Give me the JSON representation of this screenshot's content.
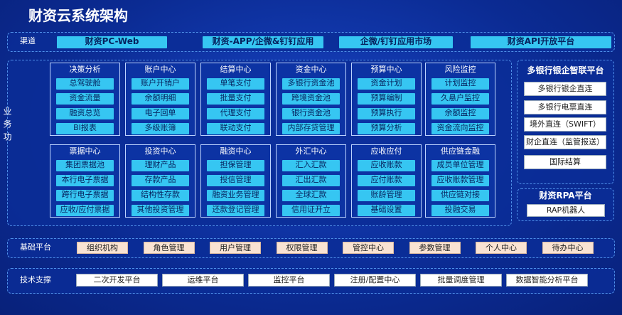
{
  "header": {
    "title": "财资云系统架构"
  },
  "channels": {
    "label": "渠道",
    "items": [
      "财资PC-Web",
      "财资-APP/企微&钉钉应用",
      "企微/钉钉应用市场",
      "财资API开放平台"
    ]
  },
  "business": {
    "label": "业务功能",
    "modules": [
      {
        "title": "决策分析",
        "items": [
          "总驾驶舱",
          "资金流量",
          "融资总览",
          "BI报表"
        ]
      },
      {
        "title": "账户中心",
        "items": [
          "账户开销户",
          "余额明细",
          "电子回单",
          "多级账簿"
        ]
      },
      {
        "title": "结算中心",
        "items": [
          "单笔支付",
          "批量支付",
          "代理支付",
          "联动支付"
        ]
      },
      {
        "title": "资金中心",
        "items": [
          "多银行资金池",
          "跨境资金池",
          "银行资金池",
          "内部存贷管理"
        ]
      },
      {
        "title": "预算中心",
        "items": [
          "资金计划",
          "预算编制",
          "预算执行",
          "预算分析"
        ]
      },
      {
        "title": "风险监控",
        "items": [
          "计划监控",
          "久悬户监控",
          "余额监控",
          "资金流向监控"
        ]
      },
      {
        "title": "票据中心",
        "items": [
          "集团票据池",
          "本行电子票据",
          "跨行电子票据",
          "应收/应付票据"
        ]
      },
      {
        "title": "投资中心",
        "items": [
          "理财产品",
          "存款产品",
          "结构性存款",
          "其他投资管理"
        ]
      },
      {
        "title": "融资中心",
        "items": [
          "担保管理",
          "授信管理",
          "融资业务管理",
          "还款登记管理"
        ]
      },
      {
        "title": "外汇中心",
        "items": [
          "汇入汇款",
          "汇出汇款",
          "全球汇款",
          "信用证开立"
        ]
      },
      {
        "title": "应收应付",
        "items": [
          "应收账款",
          "应付账款",
          "账龄管理",
          "基础设置"
        ]
      },
      {
        "title": "供应链金融",
        "items": [
          "成员单位管理",
          "应收账款管理",
          "供应链对接",
          "投融交易"
        ]
      }
    ]
  },
  "bank_platform": {
    "title": "多银行银企智联平台",
    "items": [
      "多银行银企直连",
      "多银行电票直连",
      "境外直连（SWIFT）",
      "财企直连（监管报送）",
      "国际结算"
    ]
  },
  "rpa_platform": {
    "title": "财资RPA平台",
    "items": [
      "RAP机器人"
    ]
  },
  "base_platform": {
    "label": "基础平台",
    "items": [
      "组织机构",
      "角色管理",
      "用户管理",
      "权限管理",
      "管控中心",
      "参数管理",
      "个人中心",
      "待办中心"
    ]
  },
  "tech_support": {
    "label": "技术支撑",
    "items": [
      "二次开发平台",
      "运维平台",
      "监控平台",
      "注册/配置中心",
      "批量调度管理",
      "数据智能分析平台"
    ]
  }
}
